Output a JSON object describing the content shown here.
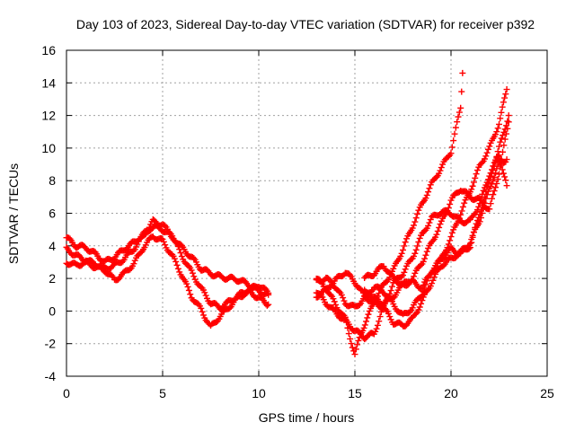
{
  "chart_data": {
    "type": "scatter",
    "title": "Day 103 of 2023, Sidereal Day-to-day VTEC variation (SDTVAR) for receiver p392",
    "xlabel": "GPS time / hours",
    "ylabel": "SDTVAR / TECUs",
    "xlim": [
      0,
      25
    ],
    "ylim": [
      -4,
      16
    ],
    "xticks": [
      0,
      5,
      10,
      15,
      20,
      25
    ],
    "yticks": [
      -4,
      -2,
      0,
      2,
      4,
      6,
      8,
      10,
      12,
      14,
      16
    ],
    "grid": true,
    "marker": "plus",
    "color": "#ff0000",
    "series": [
      {
        "points": [
          [
            0,
            4.5
          ],
          [
            0.5,
            4.0
          ],
          [
            1.0,
            3.9
          ],
          [
            1.5,
            3.5
          ],
          [
            2.0,
            3.0
          ],
          [
            2.5,
            3.3
          ],
          [
            3.0,
            3.8
          ],
          [
            3.5,
            4.2
          ],
          [
            4.0,
            4.7
          ],
          [
            4.5,
            5.2
          ],
          [
            5.0,
            5.0
          ],
          [
            5.5,
            4.6
          ],
          [
            6.0,
            3.9
          ],
          [
            6.5,
            3.3
          ],
          [
            7.0,
            2.6
          ],
          [
            7.5,
            2.3
          ],
          [
            8.0,
            2.1
          ],
          [
            8.5,
            2.0
          ],
          [
            9.0,
            1.9
          ],
          [
            9.5,
            1.6
          ],
          [
            10.0,
            1.2
          ],
          [
            10.5,
            1.0
          ]
        ]
      },
      {
        "points": [
          [
            0,
            3.8
          ],
          [
            0.5,
            3.4
          ],
          [
            1.0,
            3.1
          ],
          [
            1.5,
            2.9
          ],
          [
            2.0,
            2.6
          ],
          [
            2.5,
            2.8
          ],
          [
            3.0,
            3.2
          ],
          [
            3.5,
            3.8
          ],
          [
            4.0,
            4.6
          ],
          [
            4.5,
            5.5
          ],
          [
            5.0,
            5.3
          ],
          [
            5.5,
            4.6
          ],
          [
            6.0,
            3.4
          ],
          [
            6.5,
            2.4
          ],
          [
            7.0,
            1.4
          ],
          [
            7.5,
            0.5
          ],
          [
            8.0,
            0.2
          ],
          [
            8.5,
            0.6
          ],
          [
            9.0,
            1.0
          ],
          [
            9.5,
            1.3
          ],
          [
            10.0,
            1.6
          ],
          [
            10.5,
            1.1
          ]
        ]
      },
      {
        "points": [
          [
            0,
            3.0
          ],
          [
            0.5,
            2.8
          ],
          [
            1.0,
            3.0
          ],
          [
            1.5,
            2.7
          ],
          [
            2.0,
            2.5
          ],
          [
            2.5,
            1.9
          ],
          [
            3.0,
            2.3
          ],
          [
            3.5,
            2.9
          ],
          [
            4.0,
            3.9
          ],
          [
            4.5,
            4.6
          ],
          [
            5.0,
            4.3
          ],
          [
            5.5,
            3.4
          ],
          [
            6.0,
            2.2
          ],
          [
            6.5,
            0.9
          ],
          [
            7.0,
            0.1
          ],
          [
            7.5,
            -1.0
          ],
          [
            8.0,
            -0.3
          ],
          [
            8.5,
            0.3
          ],
          [
            9.0,
            0.9
          ],
          [
            9.5,
            1.2
          ],
          [
            10.0,
            0.8
          ],
          [
            10.5,
            0.4
          ]
        ]
      },
      {
        "points": [
          [
            13.0,
            2.0
          ],
          [
            13.5,
            1.4
          ],
          [
            14.0,
            0.4
          ],
          [
            14.5,
            -0.5
          ],
          [
            15.0,
            -2.7
          ],
          [
            15.3,
            -1.4
          ],
          [
            15.7,
            -0.3
          ],
          [
            16.0,
            0.6
          ],
          [
            16.5,
            1.6
          ],
          [
            17.0,
            2.5
          ],
          [
            17.5,
            3.8
          ],
          [
            18.0,
            5.2
          ],
          [
            18.5,
            6.6
          ],
          [
            19.0,
            7.8
          ],
          [
            19.5,
            8.8
          ],
          [
            20.0,
            9.8
          ],
          [
            20.5,
            12.5
          ],
          [
            20.6,
            14.6
          ]
        ]
      },
      {
        "points": [
          [
            13.0,
            1.8
          ],
          [
            13.5,
            2.0
          ],
          [
            14.0,
            1.5
          ],
          [
            14.5,
            0.5
          ],
          [
            15.0,
            0.2
          ],
          [
            15.5,
            0.8
          ],
          [
            16.0,
            1.5
          ],
          [
            16.5,
            1.2
          ],
          [
            17.0,
            0.4
          ],
          [
            17.5,
            -0.3
          ],
          [
            18.0,
            0.2
          ],
          [
            18.5,
            1.1
          ],
          [
            19.0,
            2.4
          ],
          [
            19.5,
            3.2
          ],
          [
            20.0,
            4.5
          ],
          [
            20.5,
            6.0
          ],
          [
            21.0,
            7.4
          ],
          [
            21.5,
            8.9
          ],
          [
            22.0,
            10.0
          ],
          [
            22.5,
            11.5
          ],
          [
            22.9,
            13.6
          ]
        ]
      },
      {
        "points": [
          [
            13.0,
            0.9
          ],
          [
            13.5,
            1.3
          ],
          [
            14.0,
            1.9
          ],
          [
            14.5,
            2.4
          ],
          [
            15.0,
            1.8
          ],
          [
            15.5,
            0.9
          ],
          [
            16.0,
            0.5
          ],
          [
            16.5,
            0.2
          ],
          [
            17.0,
            -0.7
          ],
          [
            17.5,
            -0.9
          ],
          [
            18.0,
            -0.5
          ],
          [
            18.5,
            0.6
          ],
          [
            19.0,
            1.8
          ],
          [
            19.5,
            2.8
          ],
          [
            20.0,
            3.2
          ],
          [
            20.5,
            3.6
          ],
          [
            21.0,
            4.2
          ],
          [
            21.5,
            5.6
          ],
          [
            22.0,
            7.5
          ],
          [
            22.5,
            9.1
          ],
          [
            22.9,
            9.3
          ]
        ]
      },
      {
        "points": [
          [
            13.0,
            1.2
          ],
          [
            13.5,
            0.5
          ],
          [
            14.0,
            -0.1
          ],
          [
            14.5,
            -0.6
          ],
          [
            15.0,
            -1.2
          ],
          [
            15.5,
            -1.6
          ],
          [
            16.0,
            -1.4
          ],
          [
            16.5,
            0.3
          ],
          [
            17.0,
            1.7
          ],
          [
            17.5,
            2.3
          ],
          [
            18.0,
            3.3
          ],
          [
            18.5,
            4.7
          ],
          [
            19.0,
            5.7
          ],
          [
            19.5,
            6.1
          ],
          [
            20.0,
            6.0
          ],
          [
            20.5,
            5.5
          ],
          [
            21.0,
            5.5
          ],
          [
            21.5,
            6.6
          ],
          [
            22.0,
            8.4
          ],
          [
            22.5,
            9.6
          ],
          [
            22.9,
            7.7
          ]
        ]
      },
      {
        "points": [
          [
            15.5,
            2.0
          ],
          [
            16.0,
            2.3
          ],
          [
            16.5,
            2.8
          ],
          [
            17.0,
            2.0
          ],
          [
            17.5,
            1.6
          ],
          [
            18.0,
            2.0
          ],
          [
            18.5,
            3.0
          ],
          [
            19.0,
            4.2
          ],
          [
            19.5,
            5.4
          ],
          [
            20.0,
            6.8
          ],
          [
            20.5,
            7.5
          ],
          [
            21.0,
            7.0
          ],
          [
            21.5,
            6.8
          ],
          [
            22.0,
            6.2
          ],
          [
            22.5,
            8.5
          ],
          [
            23.0,
            11.6
          ]
        ]
      },
      {
        "points": [
          [
            15.5,
            1.2
          ],
          [
            16.0,
            0.8
          ],
          [
            16.5,
            0.4
          ],
          [
            17.0,
            0.9
          ],
          [
            17.5,
            1.6
          ],
          [
            18.0,
            1.8
          ],
          [
            18.5,
            1.4
          ],
          [
            19.0,
            2.5
          ],
          [
            19.5,
            3.2
          ],
          [
            20.0,
            3.8
          ],
          [
            20.5,
            3.5
          ],
          [
            21.0,
            4.0
          ],
          [
            21.5,
            6.0
          ],
          [
            22.0,
            8.0
          ],
          [
            22.5,
            10.0
          ],
          [
            23.0,
            12.0
          ]
        ]
      }
    ]
  }
}
